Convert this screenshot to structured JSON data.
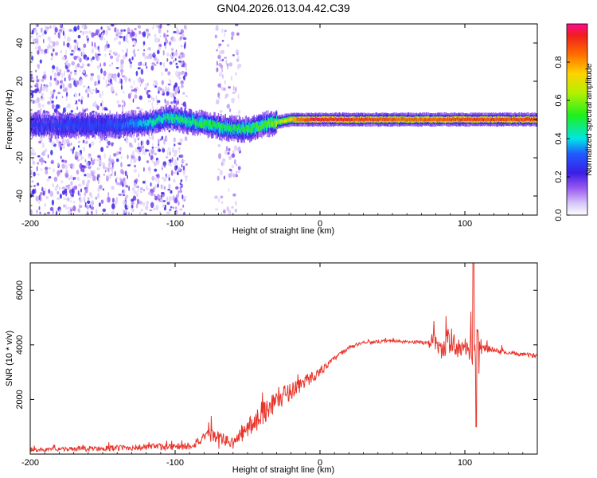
{
  "title": "GN04.2026.013.04.42.C39",
  "chart_data": [
    {
      "type": "heatmap",
      "name": "spectrogram",
      "xlabel": "Height of straight line (km)",
      "ylabel": "Frequency (Hz)",
      "xlim": [
        -200,
        150
      ],
      "ylim": [
        -50,
        50
      ],
      "xticks": [
        -200,
        -100,
        0,
        100
      ],
      "yticks": [
        -40,
        -20,
        0,
        20,
        40
      ],
      "colorbar": {
        "label": "Normalized spectral amplitude",
        "range": [
          0,
          1
        ],
        "ticks": [
          0.0,
          0.2,
          0.4,
          0.6,
          0.8
        ],
        "tick_labels": [
          "0.0",
          "0.2",
          "0.4",
          "0.6",
          "0.8"
        ]
      },
      "ridge": [
        {
          "x": -200,
          "y": -3
        },
        {
          "x": -150,
          "y": -3
        },
        {
          "x": -120,
          "y": -2
        },
        {
          "x": -105,
          "y": 1
        },
        {
          "x": -90,
          "y": -1
        },
        {
          "x": -75,
          "y": -3
        },
        {
          "x": -60,
          "y": -5
        },
        {
          "x": -50,
          "y": -5
        },
        {
          "x": -35,
          "y": -2
        },
        {
          "x": -20,
          "y": 0
        },
        {
          "x": 0,
          "y": 0
        },
        {
          "x": 100,
          "y": 0
        },
        {
          "x": 150,
          "y": 0
        }
      ],
      "ridge_amplitude": [
        {
          "x": -200,
          "a": 0.25
        },
        {
          "x": -140,
          "a": 0.3
        },
        {
          "x": -110,
          "a": 0.45
        },
        {
          "x": -80,
          "a": 0.5
        },
        {
          "x": -50,
          "a": 0.5
        },
        {
          "x": -30,
          "a": 0.6
        },
        {
          "x": -15,
          "a": 0.85
        },
        {
          "x": 0,
          "a": 0.95
        },
        {
          "x": 60,
          "a": 0.85
        },
        {
          "x": 100,
          "a": 0.9
        },
        {
          "x": 150,
          "a": 0.9
        }
      ],
      "noise_bands": [
        {
          "x0": -200,
          "x1": -92,
          "density": 1.0
        },
        {
          "x0": -72,
          "x1": -55,
          "density": 0.6
        }
      ]
    },
    {
      "type": "line",
      "name": "snr",
      "xlabel": "Height of straight line (km)",
      "ylabel": "SNR (10 * v/v)",
      "xlim": [
        -200,
        150
      ],
      "ylim": [
        0,
        7000
      ],
      "xticks": [
        -200,
        -100,
        0,
        100
      ],
      "yticks": [
        2000,
        4000,
        6000
      ],
      "color": "#e8342a",
      "series": [
        {
          "name": "SNR envelope",
          "x": [
            -200,
            -120,
            -90,
            -75,
            -60,
            -45,
            -30,
            -15,
            0,
            10,
            20,
            30,
            40,
            50,
            60,
            70,
            75,
            80,
            85,
            90,
            95,
            100,
            105,
            108,
            112,
            120,
            130,
            150
          ],
          "values": [
            150,
            250,
            300,
            700,
            400,
            1200,
            2000,
            2500,
            3000,
            3500,
            3900,
            4100,
            4100,
            4150,
            4100,
            4100,
            4050,
            4300,
            3800,
            4200,
            3900,
            3800,
            3800,
            3900,
            3900,
            3800,
            3700,
            3600
          ],
          "noise": [
            100,
            200,
            250,
            400,
            350,
            700,
            700,
            500,
            250,
            150,
            100,
            100,
            90,
            90,
            90,
            100,
            200,
            800,
            1000,
            800,
            600,
            300,
            900,
            1500,
            300,
            150,
            120,
            120
          ]
        }
      ]
    }
  ]
}
